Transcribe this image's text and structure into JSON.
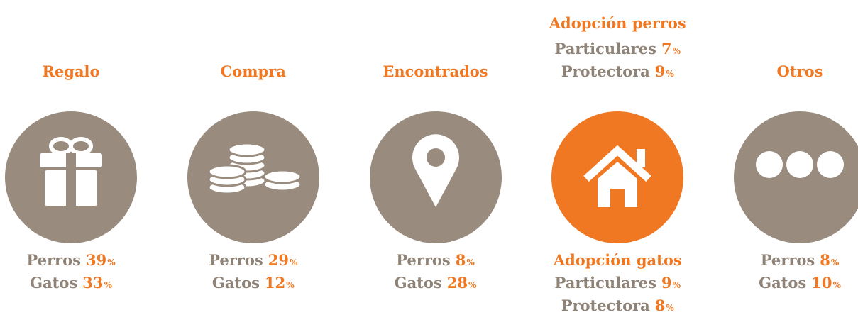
{
  "unit": "%",
  "items": [
    {
      "title": "Regalo",
      "stats": [
        {
          "label": "Perros",
          "value": "39"
        },
        {
          "label": "Gatos",
          "value": "33"
        }
      ]
    },
    {
      "title": "Compra",
      "stats": [
        {
          "label": "Perros",
          "value": "29"
        },
        {
          "label": "Gatos",
          "value": "12"
        }
      ]
    },
    {
      "title": "Encontrados",
      "stats": [
        {
          "label": "Perros",
          "value": "8"
        },
        {
          "label": "Gatos",
          "value": "28"
        }
      ]
    },
    {
      "title": "Adopción perros",
      "title_stats": [
        {
          "label": "Particulares",
          "value": "7"
        },
        {
          "label": "Protectora",
          "value": "9"
        }
      ],
      "subtitle": "Adopción gatos",
      "stats": [
        {
          "label": "Particulares",
          "value": "9"
        },
        {
          "label": "Protectora",
          "value": "8"
        }
      ]
    },
    {
      "title": "Otros",
      "stats": [
        {
          "label": "Perros",
          "value": "8"
        },
        {
          "label": "Gatos",
          "value": "10"
        }
      ]
    }
  ]
}
